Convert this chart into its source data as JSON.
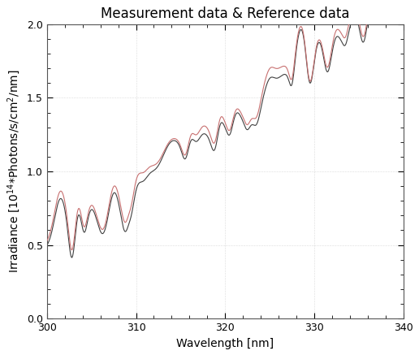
{
  "title": "Measurement data & Reference data",
  "xlabel": "Wavelength [nm]",
  "xlim": [
    300,
    340
  ],
  "ylim": [
    0.0,
    2.0
  ],
  "xticks": [
    300,
    310,
    320,
    330,
    340
  ],
  "yticks": [
    0.0,
    0.5,
    1.0,
    1.5,
    2.0
  ],
  "line_red_color": "#c87070",
  "line_black_color": "#404040",
  "background_color": "#ffffff",
  "title_fontsize": 12,
  "label_fontsize": 10,
  "tick_fontsize": 9,
  "linewidth": 0.8,
  "figsize": [
    5.16,
    4.37
  ],
  "dpi": 100
}
